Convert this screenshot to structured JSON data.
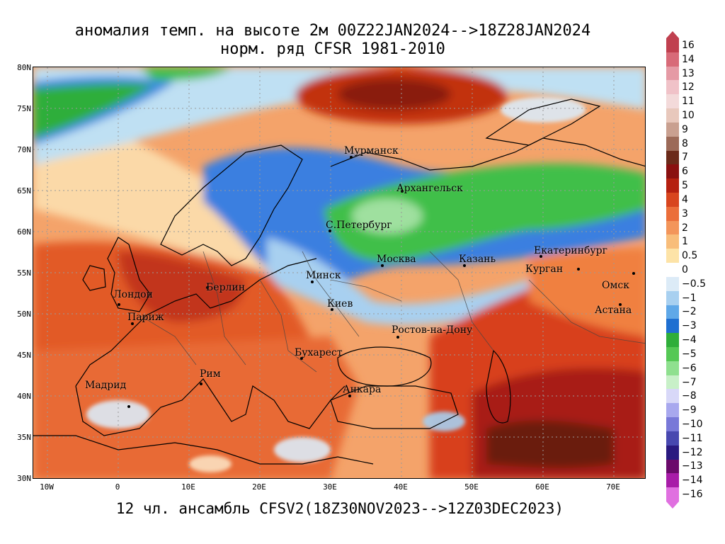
{
  "title_line1": "аномалия темп. на высоте 2м 00Z22JAN2024-->18Z28JAN2024",
  "title_line2": "норм. ряд CFSR 1981-2010",
  "footer": "12 чл. ансамбль CFSV2(18Z30NOV2023-->12Z03DEC2023)",
  "lat_labels": [
    "80N",
    "75N",
    "70N",
    "65N",
    "60N",
    "55N",
    "50N",
    "45N",
    "40N",
    "35N",
    "30N"
  ],
  "lon_labels": [
    "10W",
    "0",
    "10E",
    "20E",
    "30E",
    "40E",
    "50E",
    "60E",
    "70E"
  ],
  "cities": [
    {
      "name": "Мурманск"
    },
    {
      "name": "Архангельск"
    },
    {
      "name": "С.Петербург"
    },
    {
      "name": "Москва"
    },
    {
      "name": "Казань"
    },
    {
      "name": "Екатеринбург"
    },
    {
      "name": "Курган"
    },
    {
      "name": "Омск"
    },
    {
      "name": "Астана"
    },
    {
      "name": "Минск"
    },
    {
      "name": "Киев"
    },
    {
      "name": "Берлин"
    },
    {
      "name": "Лондон"
    },
    {
      "name": "Париж"
    },
    {
      "name": "Ростов-на-Дону"
    },
    {
      "name": "Бухарест"
    },
    {
      "name": "Рим"
    },
    {
      "name": "Мадрид"
    },
    {
      "name": "Анкара"
    }
  ],
  "colorbar": {
    "labels": [
      "16",
      "14",
      "13",
      "12",
      "11",
      "10",
      "9",
      "8",
      "7",
      "6",
      "5",
      "4",
      "3",
      "2",
      "1",
      "0.5",
      "0",
      "−0.5",
      "−1",
      "−2",
      "−3",
      "−4",
      "−5",
      "−6",
      "−7",
      "−8",
      "−9",
      "−10",
      "−11",
      "−12",
      "−13",
      "−14",
      "−16"
    ],
    "colors": [
      "#c0404f",
      "#d86a78",
      "#e59aa5",
      "#f0c2c8",
      "#f3dada",
      "#e8c8bc",
      "#c9a090",
      "#9c6a58",
      "#6b2a1a",
      "#8a1010",
      "#b52010",
      "#d8451e",
      "#eb6e3a",
      "#f3955a",
      "#f8bd7a",
      "#fde3a7",
      "#ffffff",
      "#dcebf7",
      "#a8d0f0",
      "#5fa8e8",
      "#1f6fd1",
      "#2fae3a",
      "#55c855",
      "#8fe08f",
      "#c8f0c8",
      "#d8d8f8",
      "#a8a8ee",
      "#7878d8",
      "#4848b0",
      "#2a1a80",
      "#6b0a6b",
      "#a81ca8",
      "#e070e0"
    ]
  },
  "map": {
    "extent": {
      "lon_min": -12,
      "lon_max": 75,
      "lat_min": 30,
      "lat_max": 80
    },
    "colors": {
      "ocean_warm": "#f4a36a",
      "cold_blue": "#3a7fe0",
      "cold_green": "#3fbf4a",
      "warm_red": "#d8401c",
      "hot_dark": "#9a1a10",
      "neutral": "#fbe9c8"
    }
  }
}
